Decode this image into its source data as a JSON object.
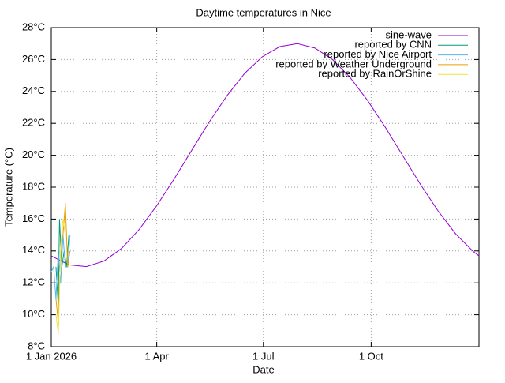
{
  "chart_data": {
    "type": "line",
    "title": "Daytime temperatures in Nice",
    "x_label": "Date",
    "y_label": "Temperature (°C)",
    "xlim": [
      0,
      365
    ],
    "ylim": [
      8,
      28
    ],
    "xticks": [
      {
        "value": 0,
        "label": "1 Jan 2026"
      },
      {
        "value": 90,
        "label": "1 Apr"
      },
      {
        "value": 181,
        "label": "1 Jul"
      },
      {
        "value": 273,
        "label": "1 Oct"
      }
    ],
    "yticks": [
      {
        "value": 8,
        "label": "8°C"
      },
      {
        "value": 10,
        "label": "10°C"
      },
      {
        "value": 12,
        "label": "12°C"
      },
      {
        "value": 14,
        "label": "14°C"
      },
      {
        "value": 16,
        "label": "16°C"
      },
      {
        "value": 18,
        "label": "18°C"
      },
      {
        "value": 20,
        "label": "20°C"
      },
      {
        "value": 22,
        "label": "22°C"
      },
      {
        "value": 24,
        "label": "24°C"
      },
      {
        "value": 26,
        "label": "26°C"
      },
      {
        "value": 28,
        "label": "28°C"
      }
    ],
    "grid": true,
    "legend": "top-right",
    "series": [
      {
        "name": "sine-wave",
        "color": "#9400d3",
        "x": [
          0,
          15,
          30,
          45,
          60,
          75,
          90,
          105,
          120,
          135,
          150,
          165,
          180,
          195,
          210,
          225,
          240,
          255,
          270,
          285,
          300,
          315,
          330,
          345,
          360,
          365
        ],
        "values": [
          13.69,
          13.13,
          13.02,
          13.37,
          14.16,
          15.35,
          16.84,
          18.53,
          20.33,
          22.11,
          23.74,
          25.13,
          26.17,
          26.81,
          27.0,
          26.72,
          26.0,
          24.88,
          23.43,
          21.76,
          19.97,
          18.18,
          16.52,
          15.08,
          13.97,
          13.69
        ]
      },
      {
        "name": "reported by CNN",
        "color": "#009e73",
        "x": [
          4,
          6,
          7,
          9,
          11,
          13,
          15
        ],
        "values": [
          13,
          10.5,
          16,
          13,
          14,
          13,
          15
        ]
      },
      {
        "name": "reported by Nice Airport",
        "color": "#56b4e9",
        "x": [
          0,
          2,
          4,
          6,
          8,
          10,
          12,
          14,
          16
        ],
        "values": [
          12.7,
          13,
          11,
          14,
          12,
          15,
          13,
          13,
          15
        ]
      },
      {
        "name": "reported by Weather Underground",
        "color": "#e69f00",
        "x": [
          4,
          6,
          8,
          10,
          12,
          14,
          16
        ],
        "values": [
          11,
          9.5,
          14,
          15,
          17,
          13,
          14
        ]
      },
      {
        "name": "reported by RainOrShine",
        "color": "#f0e442",
        "x": [
          4,
          6,
          8,
          10,
          12,
          14
        ],
        "values": [
          10,
          8.8,
          14,
          16,
          15,
          15
        ]
      }
    ]
  }
}
